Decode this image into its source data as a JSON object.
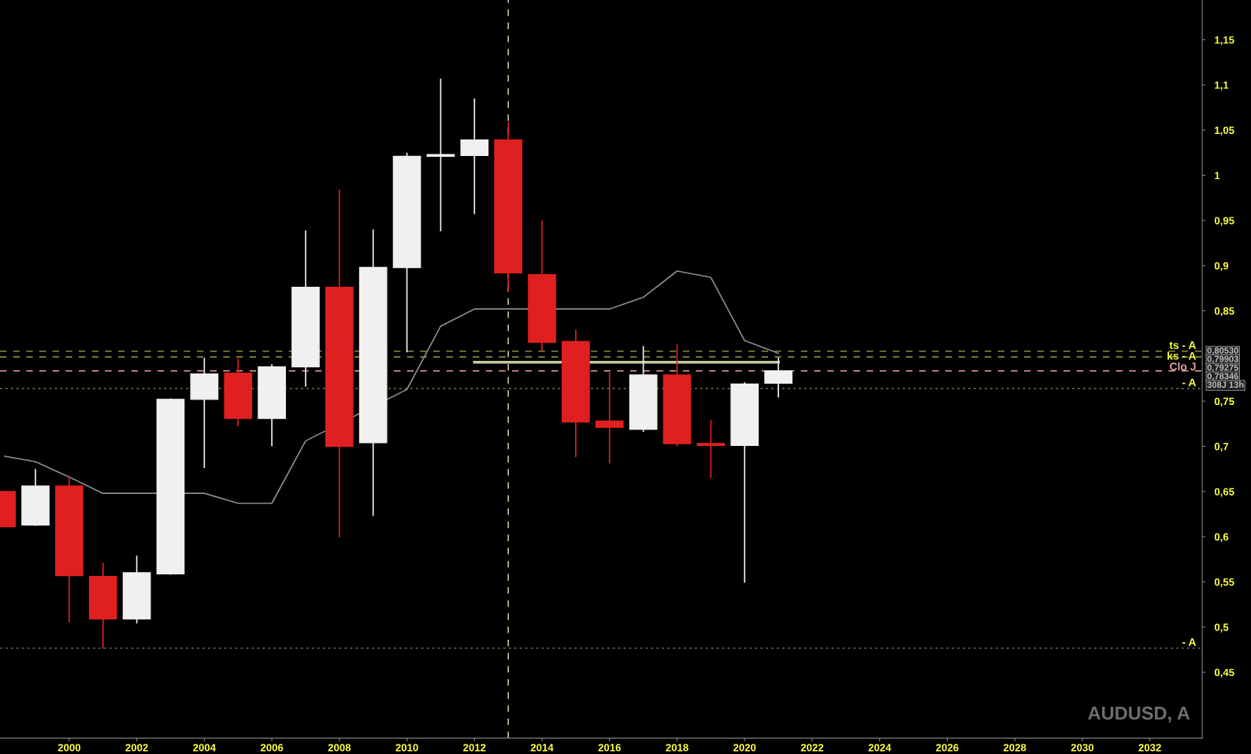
{
  "chart_data": {
    "type": "candlestick",
    "title": "AUDUSD, A",
    "x": [
      1998,
      1999,
      2000,
      2001,
      2002,
      2003,
      2004,
      2005,
      2006,
      2007,
      2008,
      2009,
      2010,
      2011,
      2012,
      2013,
      2014,
      2015,
      2016,
      2017,
      2018,
      2019,
      2020,
      2021
    ],
    "ohlc": [
      [
        0.65,
        0.65,
        0.611,
        0.611
      ],
      [
        0.613,
        0.675,
        0.612,
        0.656
      ],
      [
        0.656,
        0.667,
        0.505,
        0.557
      ],
      [
        0.556,
        0.571,
        0.476,
        0.509
      ],
      [
        0.509,
        0.579,
        0.504,
        0.56
      ],
      [
        0.559,
        0.753,
        0.558,
        0.752
      ],
      [
        0.752,
        0.798,
        0.676,
        0.78
      ],
      [
        0.781,
        0.797,
        0.722,
        0.731
      ],
      [
        0.731,
        0.791,
        0.7,
        0.788
      ],
      [
        0.788,
        0.939,
        0.766,
        0.876
      ],
      [
        0.876,
        0.984,
        0.599,
        0.7
      ],
      [
        0.704,
        0.94,
        0.623,
        0.898
      ],
      [
        0.898,
        1.025,
        0.804,
        1.021
      ],
      [
        1.021,
        1.107,
        0.938,
        1.023
      ],
      [
        1.022,
        1.085,
        0.957,
        1.039
      ],
      [
        1.039,
        1.059,
        0.872,
        0.892
      ],
      [
        0.89,
        0.95,
        0.806,
        0.815
      ],
      [
        0.816,
        0.829,
        0.688,
        0.727
      ],
      [
        0.728,
        0.782,
        0.681,
        0.721
      ],
      [
        0.719,
        0.811,
        0.716,
        0.779
      ],
      [
        0.779,
        0.813,
        0.7,
        0.703
      ],
      [
        0.703,
        0.729,
        0.665,
        0.701
      ],
      [
        0.701,
        0.771,
        0.549,
        0.769
      ],
      [
        0.77,
        0.798,
        0.754,
        0.78346
      ]
    ],
    "colors": [
      "#e02020",
      "#f0f0f0",
      "#e02020",
      "#e02020",
      "#f0f0f0",
      "#f0f0f0",
      "#f0f0f0",
      "#e02020",
      "#f0f0f0",
      "#f0f0f0",
      "#e02020",
      "#f0f0f0",
      "#f0f0f0",
      "#f0f0f0",
      "#f0f0f0",
      "#e02020",
      "#e02020",
      "#e02020",
      "#e02020",
      "#f0f0f0",
      "#e02020",
      "#e02020",
      "#f0f0f0",
      "#f0f0f0"
    ],
    "series": [
      {
        "type": "line",
        "color": "#8c8c8c",
        "x": [
          1998.09,
          1999,
          2000,
          2001,
          2004,
          2005,
          2006,
          2007,
          2010,
          2011,
          2012,
          2016,
          2017,
          2018,
          2019,
          2020,
          2021
        ],
        "values": [
          0.689,
          0.683,
          0.666,
          0.648,
          0.648,
          0.637,
          0.637,
          0.706,
          0.763,
          0.833,
          0.852,
          0.852,
          0.865,
          0.894,
          0.887,
          0.817,
          0.803
        ]
      },
      {
        "type": "line",
        "color": "#c8c8a0",
        "x": [
          2012,
          2021
        ],
        "values": [
          0.793,
          0.793
        ]
      }
    ],
    "xlim": [
      1997.95,
      2033.55
    ],
    "ylim": [
      0.377,
      1.194
    ],
    "xticks": [
      2000,
      2002,
      2004,
      2006,
      2008,
      2010,
      2012,
      2014,
      2016,
      2018,
      2020,
      2022,
      2024,
      2026,
      2028,
      2030,
      2032
    ],
    "yticks": [
      {
        "value": 0.45,
        "label": "0,45"
      },
      {
        "value": 0.5,
        "label": "0,5"
      },
      {
        "value": 0.55,
        "label": "0,55"
      },
      {
        "value": 0.6,
        "label": "0,6"
      },
      {
        "value": 0.65,
        "label": "0,65"
      },
      {
        "value": 0.7,
        "label": "0,7"
      },
      {
        "value": 0.75,
        "label": "0,75"
      },
      {
        "value": 0.85,
        "label": "0,85"
      },
      {
        "value": 0.9,
        "label": "0,9"
      },
      {
        "value": 0.95,
        "label": "0,95"
      },
      {
        "value": 1.0,
        "label": "1"
      },
      {
        "value": 1.05,
        "label": "1,05"
      },
      {
        "value": 1.1,
        "label": "1,1"
      },
      {
        "value": 1.15,
        "label": "1,15"
      }
    ],
    "ref_lines": [
      {
        "axis": "y",
        "value": 0.8053,
        "label": "ts - A",
        "color": "#8a8a40",
        "line_style": "dashed"
      },
      {
        "axis": "y",
        "value": 0.79903,
        "label": "ks - A",
        "color": "#a0a040",
        "line_style": "dashed"
      },
      {
        "axis": "y",
        "value": 0.78346,
        "label": "Clo J",
        "color": "#e8a0a0",
        "line_style": "dashed"
      },
      {
        "axis": "y",
        "value": 0.764,
        "label": "- A",
        "color": "#909050",
        "line_style": "dotted"
      },
      {
        "axis": "y",
        "value": 0.4767,
        "label": "- A",
        "color": "#808070",
        "line_style": "dotted"
      },
      {
        "axis": "x",
        "value": 2013,
        "color": "#f0e0b0",
        "line_style": "dashed"
      }
    ],
    "annotations": [
      "0,80530",
      "0,79903",
      "0,79275",
      "0,78346",
      "308J 13h"
    ],
    "grid": false,
    "legend": false
  }
}
